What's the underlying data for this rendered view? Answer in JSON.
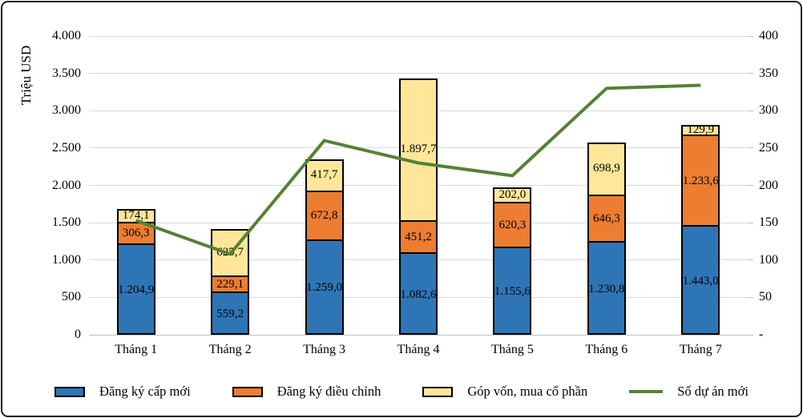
{
  "chart_data": {
    "type": "bar",
    "subtype": "stacked-bar-with-line-combo",
    "categories": [
      "Tháng 1",
      "Tháng 2",
      "Tháng 3",
      "Tháng 4",
      "Tháng 5",
      "Tháng 6",
      "Tháng 7"
    ],
    "series": [
      {
        "name": "Đăng ký cấp mới",
        "kind": "bar",
        "color": "#2E75B6",
        "values": [
          1204.9,
          559.2,
          1259.0,
          1082.6,
          1155.6,
          1230.8,
          1443.0
        ],
        "labels": [
          "1.204,9",
          "559,2",
          "1.259,0",
          "1.082,6",
          "1.155,6",
          "1.230,8",
          "1.443,0"
        ]
      },
      {
        "name": "Đăng ký điều chỉnh",
        "kind": "bar",
        "color": "#ED7D31",
        "values": [
          306.3,
          229.1,
          672.8,
          451.2,
          620.3,
          646.3,
          1233.6
        ],
        "labels": [
          "306,3",
          "229,1",
          "672,8",
          "451,2",
          "620,3",
          "646,3",
          "1.233,6"
        ]
      },
      {
        "name": "Góp vốn, mua cổ phần",
        "kind": "bar",
        "color": "#FFE699",
        "values": [
          174.1,
          625.7,
          417.7,
          1897.7,
          202.0,
          698.9,
          129.9
        ],
        "labels": [
          "174,1",
          "625,7",
          "417,7",
          "1.897,7",
          "202,0",
          "698,9",
          "129,9"
        ]
      },
      {
        "name": "Số dự án mới",
        "kind": "line",
        "axis": "right",
        "color": "#548235",
        "values": [
          153,
          108,
          260,
          230,
          213,
          330,
          334
        ]
      }
    ],
    "left_axis": {
      "title": "Triệu USD",
      "min": 0,
      "max": 4000,
      "step": 500,
      "tick_labels": [
        "0",
        "500",
        "1.000",
        "1.500",
        "2.000",
        "2.500",
        "3.000",
        "3.500",
        "4.000"
      ]
    },
    "right_axis": {
      "min": 0,
      "max": 400,
      "step": 50,
      "tick_labels": [
        "-",
        "50",
        "100",
        "150",
        "200",
        "250",
        "300",
        "350",
        "400"
      ]
    },
    "grid": true,
    "legend_position": "bottom",
    "style": {
      "grid_color": "#D9D9D9",
      "axis_color": "#BFBFBF",
      "bar_border_color": "#000000",
      "text_color": "#000000"
    }
  }
}
